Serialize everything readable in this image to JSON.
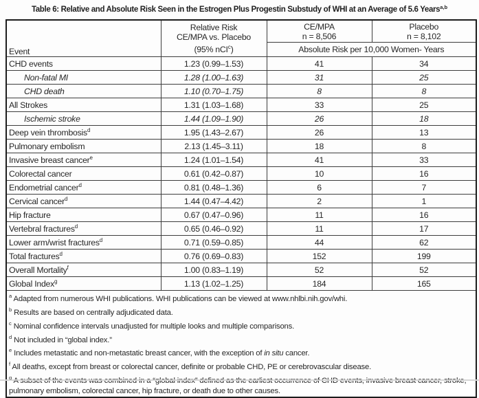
{
  "title": {
    "text": "Table 6: Relative and Absolute Risk Seen in the Estrogen Plus Progestin Substudy of WHI at an Average of 5.6 Years",
    "sup": "a,b"
  },
  "header": {
    "event_label": "Event",
    "relative_risk": {
      "line1": "Relative Risk",
      "line2": "CE/MPA vs. Placebo",
      "line3_pre": "(95% nCI",
      "line3_sup": "c",
      "line3_post": ")"
    },
    "cempa": {
      "line1": "CE/MPA",
      "line2": "n = 8,506"
    },
    "placebo": {
      "line1": "Placebo",
      "line2": "n = 8,102"
    },
    "absolute_risk_span": "Absolute Risk per 10,000 Women- Years"
  },
  "rows": [
    {
      "event": "CHD events",
      "sup": "",
      "indent": false,
      "italic": false,
      "rr": "1.23 (0.99–1.53)",
      "cempa": "41",
      "placebo": "34"
    },
    {
      "event": "Non-fatal MI",
      "sup": "",
      "indent": true,
      "italic": true,
      "rr": "1.28 (1.00–1.63)",
      "cempa": "31",
      "placebo": "25"
    },
    {
      "event": "CHD death",
      "sup": "",
      "indent": true,
      "italic": true,
      "rr": "1.10 (0.70–1.75)",
      "cempa": "8",
      "placebo": "8"
    },
    {
      "event": "All Strokes",
      "sup": "",
      "indent": false,
      "italic": false,
      "rr": "1.31 (1.03–1.68)",
      "cempa": "33",
      "placebo": "25"
    },
    {
      "event": "Ischemic stroke",
      "sup": "",
      "indent": true,
      "italic": true,
      "rr": "1.44 (1.09–1.90)",
      "cempa": "26",
      "placebo": "18"
    },
    {
      "event": "Deep vein thrombosis",
      "sup": "d",
      "indent": false,
      "italic": false,
      "rr": "1.95 (1.43–2.67)",
      "cempa": "26",
      "placebo": "13"
    },
    {
      "event": "Pulmonary embolism",
      "sup": "",
      "indent": false,
      "italic": false,
      "rr": "2.13 (1.45–3.11)",
      "cempa": "18",
      "placebo": "8"
    },
    {
      "event": "Invasive breast cancer",
      "sup": "e",
      "indent": false,
      "italic": false,
      "rr": "1.24 (1.01–1.54)",
      "cempa": "41",
      "placebo": "33"
    },
    {
      "event": "Colorectal cancer",
      "sup": "",
      "indent": false,
      "italic": false,
      "rr": "0.61 (0.42–0.87)",
      "cempa": "10",
      "placebo": "16"
    },
    {
      "event": "Endometrial cancer",
      "sup": "d",
      "indent": false,
      "italic": false,
      "rr": "0.81 (0.48–1.36)",
      "cempa": "6",
      "placebo": "7"
    },
    {
      "event": "Cervical cancer",
      "sup": "d",
      "indent": false,
      "italic": false,
      "rr": "1.44 (0.47–4.42)",
      "cempa": "2",
      "placebo": "1"
    },
    {
      "event": "Hip fracture",
      "sup": "",
      "indent": false,
      "italic": false,
      "rr": "0.67 (0.47–0.96)",
      "cempa": "11",
      "placebo": "16"
    },
    {
      "event": "Vertebral fractures",
      "sup": "d",
      "indent": false,
      "italic": false,
      "rr": "0.65 (0.46–0.92)",
      "cempa": "11",
      "placebo": "17"
    },
    {
      "event": "Lower arm/wrist fractures",
      "sup": "d",
      "indent": false,
      "italic": false,
      "rr": "0.71 (0.59–0.85)",
      "cempa": "44",
      "placebo": "62"
    },
    {
      "event": "Total fractures",
      "sup": "d",
      "indent": false,
      "italic": false,
      "rr": "0.76 (0.69–0.83)",
      "cempa": "152",
      "placebo": "199"
    },
    {
      "event": "Overall Mortality",
      "sup": "f",
      "indent": false,
      "italic": false,
      "rr": "1.00 (0.83–1.19)",
      "cempa": "52",
      "placebo": "52"
    },
    {
      "event": "Global Index",
      "sup": "g",
      "indent": false,
      "italic": false,
      "rr": "1.13 (1.02–1.25)",
      "cempa": "184",
      "placebo": "165"
    }
  ],
  "footnotes": [
    {
      "sup": "a",
      "segments": [
        {
          "t": "Adapted from numerous WHI publications. WHI publications can be viewed at www.nhlbi.nih.gov/whi."
        }
      ]
    },
    {
      "sup": "b",
      "segments": [
        {
          "t": "Results are based on centrally adjudicated data."
        }
      ]
    },
    {
      "sup": "c",
      "segments": [
        {
          "t": "Nominal confidence intervals unadjusted for multiple looks and multiple comparisons."
        }
      ]
    },
    {
      "sup": "d",
      "segments": [
        {
          "t": "Not included in “global index.”"
        }
      ]
    },
    {
      "sup": "e",
      "segments": [
        {
          "t": "Includes metastatic and non-metastatic breast cancer, with the exception of "
        },
        {
          "t": "in situ",
          "italic": true
        },
        {
          "t": " cancer."
        }
      ]
    },
    {
      "sup": "f",
      "segments": [
        {
          "t": "All deaths, except from breast or colorectal cancer, definite or probable CHD, PE or cerebrovascular disease."
        }
      ]
    },
    {
      "sup": "g",
      "segments": [
        {
          "t": "A subset of the events was combined in a “global index” defined as the earliest occurrence of CHD events, invasive breast cancer, stroke, pulmonary embolism, colorectal cancer, hip fracture, or death due to other causes."
        }
      ]
    }
  ],
  "colors": {
    "text": "#242424",
    "border_outer": "#1c1c1c",
    "border_inner": "#3c3c3c",
    "background": "#fdfdfd"
  }
}
